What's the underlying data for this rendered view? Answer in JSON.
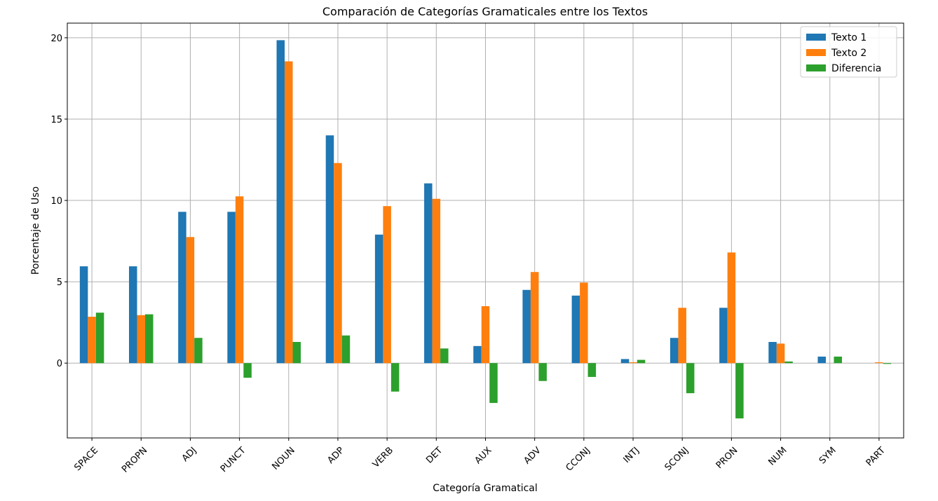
{
  "chart_data": {
    "type": "bar",
    "title": "Comparación de Categorías Gramaticales entre los Textos",
    "xlabel": "Categoría Gramatical",
    "ylabel": "Porcentaje de Uso",
    "categories": [
      "SPACE",
      "PROPN",
      "ADJ",
      "PUNCT",
      "NOUN",
      "ADP",
      "VERB",
      "DET",
      "AUX",
      "ADV",
      "CCONJ",
      "INTJ",
      "SCONJ",
      "PRON",
      "NUM",
      "SYM",
      "PART"
    ],
    "series": [
      {
        "name": "Texto 1",
        "color": "#1f77b4",
        "values": [
          5.95,
          5.95,
          9.3,
          9.3,
          19.85,
          14.0,
          7.9,
          11.05,
          1.05,
          4.5,
          4.15,
          0.25,
          1.55,
          3.4,
          1.3,
          0.4,
          0.0
        ]
      },
      {
        "name": "Texto 2",
        "color": "#ff7f0e",
        "values": [
          2.85,
          2.95,
          7.75,
          10.25,
          18.55,
          12.3,
          9.65,
          10.1,
          3.5,
          5.6,
          4.95,
          0.05,
          3.4,
          6.8,
          1.2,
          0.0,
          0.05
        ]
      },
      {
        "name": "Diferencia",
        "color": "#2ca02c",
        "values": [
          3.1,
          3.0,
          1.55,
          -0.9,
          1.3,
          1.7,
          -1.75,
          0.9,
          -2.45,
          -1.1,
          -0.85,
          0.2,
          -1.85,
          -3.4,
          0.1,
          0.4,
          -0.05
        ]
      }
    ],
    "yticks": [
      0,
      5,
      10,
      15,
      20
    ],
    "ylim": [
      -4.6,
      20.9
    ],
    "grid": true,
    "legend": "top-right"
  }
}
